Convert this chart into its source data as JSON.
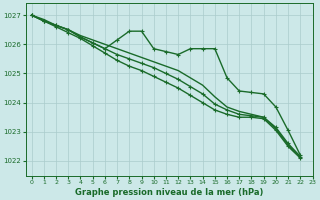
{
  "background_color": "#cce8e8",
  "grid_color": "#aacccc",
  "line_color": "#1a6b2a",
  "marker_color": "#1a6b2a",
  "axis_label_color": "#1a6b2a",
  "tick_label_color": "#1a6b2a",
  "xlabel": "Graphe pression niveau de la mer (hPa)",
  "xlim": [
    -0.5,
    23
  ],
  "ylim": [
    1021.5,
    1027.4
  ],
  "yticks": [
    1022,
    1023,
    1024,
    1025,
    1026,
    1027
  ],
  "xticks": [
    0,
    1,
    2,
    3,
    4,
    5,
    6,
    7,
    8,
    9,
    10,
    11,
    12,
    13,
    14,
    15,
    16,
    17,
    18,
    19,
    20,
    21,
    22,
    23
  ],
  "series": [
    {
      "x": [
        0,
        1,
        2,
        3,
        4,
        5,
        6,
        7,
        8,
        9,
        10,
        11,
        12,
        13,
        14,
        15,
        16,
        17,
        18,
        19,
        20,
        21,
        22
      ],
      "y": [
        1027.0,
        1026.85,
        1026.65,
        1026.5,
        1026.3,
        1026.15,
        1026.0,
        1025.85,
        1025.7,
        1025.55,
        1025.4,
        1025.25,
        1025.1,
        1024.85,
        1024.6,
        1024.2,
        1023.85,
        1023.7,
        1023.6,
        1023.5,
        1023.1,
        1022.55,
        1022.15
      ],
      "marker": "None",
      "lw": 1.0
    },
    {
      "x": [
        0,
        1,
        2,
        3,
        4,
        5,
        6,
        7,
        8,
        9,
        10,
        11,
        12,
        13,
        14,
        15,
        16,
        17,
        18,
        19,
        20,
        21,
        22
      ],
      "y": [
        1027.0,
        1026.8,
        1026.65,
        1026.5,
        1026.25,
        1026.05,
        1025.85,
        1026.15,
        1026.45,
        1026.45,
        1025.85,
        1025.75,
        1025.65,
        1025.85,
        1025.85,
        1025.85,
        1024.85,
        1024.4,
        1024.35,
        1024.3,
        1023.85,
        1023.05,
        1022.2
      ],
      "marker": "+",
      "lw": 1.0
    },
    {
      "x": [
        0,
        1,
        2,
        3,
        4,
        5,
        6,
        7,
        8,
        9,
        10,
        11,
        12,
        13,
        14,
        15,
        16,
        17,
        18,
        19,
        20,
        21,
        22
      ],
      "y": [
        1027.0,
        1026.8,
        1026.65,
        1026.5,
        1026.25,
        1026.05,
        1025.85,
        1025.65,
        1025.5,
        1025.35,
        1025.2,
        1025.0,
        1024.8,
        1024.55,
        1024.3,
        1023.95,
        1023.75,
        1023.6,
        1023.55,
        1023.5,
        1023.15,
        1022.6,
        1022.15
      ],
      "marker": "+",
      "lw": 1.0
    },
    {
      "x": [
        0,
        1,
        2,
        3,
        4,
        5,
        6,
        7,
        8,
        9,
        10,
        11,
        12,
        13,
        14,
        15,
        16,
        17,
        18,
        19,
        20,
        21,
        22
      ],
      "y": [
        1027.0,
        1026.8,
        1026.6,
        1026.4,
        1026.2,
        1025.95,
        1025.7,
        1025.45,
        1025.25,
        1025.1,
        1024.9,
        1024.7,
        1024.5,
        1024.25,
        1024.0,
        1023.75,
        1023.6,
        1023.5,
        1023.5,
        1023.45,
        1023.05,
        1022.5,
        1022.1
      ],
      "marker": "+",
      "lw": 1.0
    }
  ]
}
